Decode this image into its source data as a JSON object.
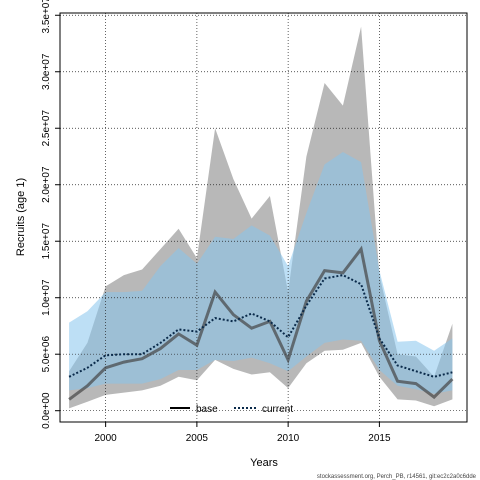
{
  "chart_data": {
    "type": "line",
    "xlabel": "Years",
    "ylabel": "Recruits (age 1)",
    "xlim": [
      1997.5,
      2019.8
    ],
    "ylim": [
      -1000000,
      35200000
    ],
    "x_ticks": [
      2000,
      2005,
      2010,
      2015
    ],
    "x_tick_labels": [
      "2000",
      "2005",
      "2010",
      "2015"
    ],
    "y_ticks": [
      0,
      5000000,
      10000000,
      15000000,
      20000000,
      25000000,
      30000000,
      35000000
    ],
    "y_tick_labels": [
      "0.0e+00",
      "5.0e+06",
      "1.0e+07",
      "1.5e+07",
      "2.0e+07",
      "2.5e+07",
      "3.0e+07",
      "3.5e+07"
    ],
    "grid": true,
    "legend_position": "bottom",
    "x": [
      1998,
      1999,
      2000,
      2001,
      2002,
      2003,
      2004,
      2005,
      2006,
      2007,
      2008,
      2009,
      2010,
      2011,
      2012,
      2013,
      2014,
      2015,
      2016,
      2017,
      2018,
      2019
    ],
    "series": [
      {
        "name": "base",
        "color": "#000000",
        "style": "solid",
        "values": [
          1000000,
          2200000,
          3800000,
          4300000,
          4600000,
          5500000,
          6800000,
          5800000,
          10500000,
          8500000,
          7300000,
          7900000,
          4500000,
          9700000,
          12400000,
          12200000,
          14300000,
          6200000,
          2600000,
          2400000,
          1200000,
          2800000
        ],
        "lower": [
          200000,
          800000,
          1400000,
          1600000,
          1800000,
          2200000,
          3000000,
          2700000,
          4500000,
          3700000,
          3200000,
          3400000,
          2000000,
          4200000,
          5300000,
          5400000,
          6000000,
          3000000,
          1000000,
          900000,
          400000,
          1000000
        ],
        "upper": [
          3500000,
          6000000,
          11000000,
          12000000,
          12500000,
          14300000,
          16100000,
          13500000,
          25000000,
          20500000,
          17000000,
          19000000,
          10500000,
          22500000,
          29000000,
          27000000,
          34000000,
          12000000,
          5000000,
          4800000,
          3000000,
          7700000
        ],
        "band_color": "#b8b8b8"
      },
      {
        "name": "current",
        "color": "#0a2a4a",
        "style": "dotted",
        "values": [
          3000000,
          3800000,
          4900000,
          5000000,
          5000000,
          6000000,
          7200000,
          7000000,
          8200000,
          7900000,
          8600000,
          7900000,
          6500000,
          9300000,
          11700000,
          12000000,
          11200000,
          6400000,
          4000000,
          3500000,
          3000000,
          3400000
        ],
        "lower": [
          1800000,
          2000000,
          2400000,
          2400000,
          2400000,
          2800000,
          3600000,
          3600000,
          4500000,
          4400000,
          4700000,
          4200000,
          3500000,
          4800000,
          6000000,
          6300000,
          6200000,
          3600000,
          2200000,
          1900000,
          1500000,
          1800000
        ],
        "upper": [
          7800000,
          8800000,
          10500000,
          10500000,
          10600000,
          12800000,
          14400000,
          13000000,
          15400000,
          15200000,
          16400000,
          15500000,
          12800000,
          17500000,
          21800000,
          22900000,
          22000000,
          12400000,
          6100000,
          6200000,
          5300000,
          6400000
        ],
        "band_color": "#87c5ec"
      }
    ]
  },
  "legend": {
    "items": [
      {
        "label": "base",
        "color": "#000000",
        "style": "solid"
      },
      {
        "label": "current",
        "color": "#0a2a4a",
        "style": "dotted"
      }
    ]
  },
  "footnote": "stockassessment.org, Perch_PB, r14561, git:ec2c2a0c6dde"
}
